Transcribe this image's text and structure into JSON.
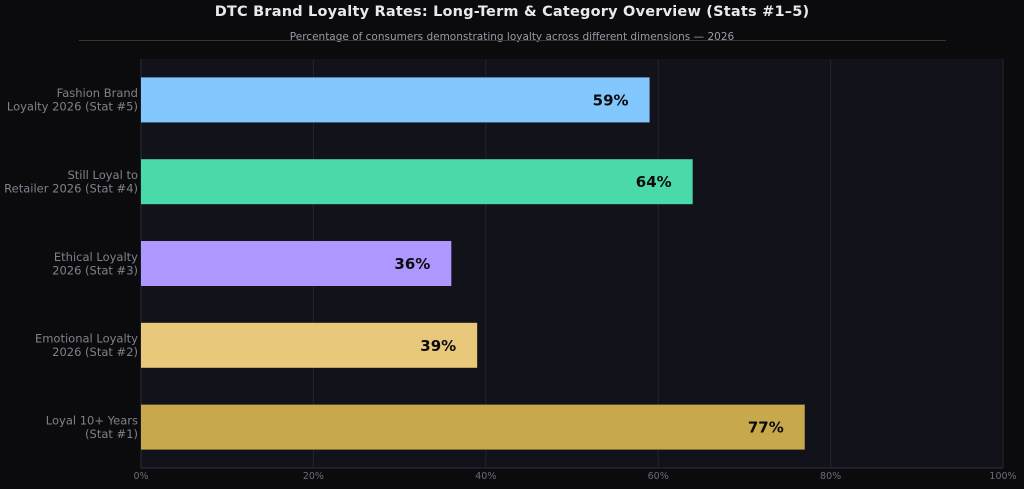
{
  "chart_data": {
    "type": "bar",
    "orientation": "horizontal",
    "title": "DTC Brand Loyalty Rates: Long-Term & Category Overview (Stats #1–5)",
    "subtitle": "Percentage of consumers demonstrating loyalty across different dimensions — 2026",
    "categories": [
      [
        "Fashion Brand",
        "Loyalty 2026 (Stat #5)"
      ],
      [
        "Still Loyal to",
        "Retailer 2026 (Stat #4)"
      ],
      [
        "Ethical Loyalty",
        "2026 (Stat #3)"
      ],
      [
        "Emotional Loyalty",
        "2026 (Stat #2)"
      ],
      [
        "Loyal 10+ Years",
        "(Stat #1)"
      ]
    ],
    "values": [
      59,
      64,
      36,
      39,
      77
    ],
    "value_labels": [
      "59%",
      "64%",
      "36%",
      "39%",
      "77%"
    ],
    "colors": [
      "#82c8ff",
      "#4ad9a8",
      "#ae98ff",
      "#e8c87a",
      "#c8a84c"
    ],
    "xlim": [
      0,
      100
    ],
    "xticks": [
      0,
      20,
      40,
      60,
      80,
      100
    ],
    "xtick_labels": [
      "0%",
      "20%",
      "40%",
      "60%",
      "80%",
      "100%"
    ],
    "grid": true,
    "legend": "none"
  }
}
